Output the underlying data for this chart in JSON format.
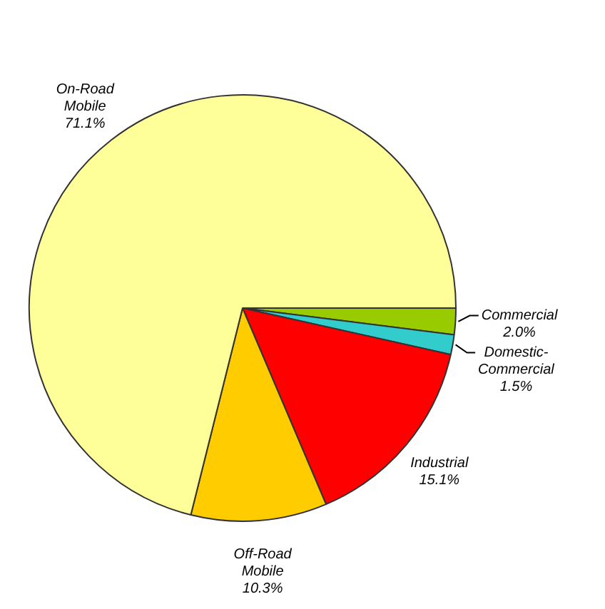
{
  "chart_data": {
    "type": "pie",
    "categories": [
      "Commercial",
      "Domestic-Commercial",
      "Industrial",
      "Off-Road Mobile",
      "On-Road Mobile"
    ],
    "values": [
      2.0,
      1.5,
      15.1,
      10.3,
      71.1
    ],
    "value_labels": [
      "2.0%",
      "1.5%",
      "15.1%",
      "10.3%",
      "71.1%"
    ],
    "colors": [
      "#99cc00",
      "#33cccc",
      "#ff0000",
      "#ffcc00",
      "#ffff99"
    ],
    "legend": false
  }
}
